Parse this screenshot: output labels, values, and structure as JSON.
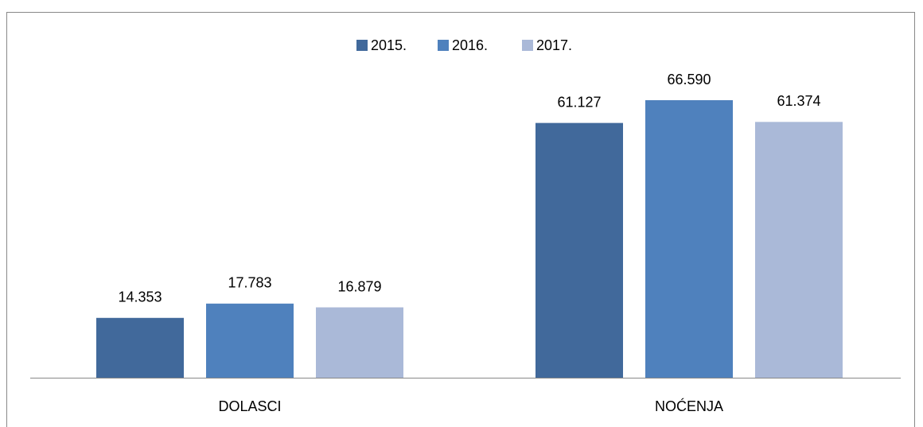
{
  "chart_data": {
    "type": "bar",
    "categories": [
      "DOLASCI",
      "NOĆENJA"
    ],
    "series": [
      {
        "name": "2015.",
        "color": "#41699b",
        "values": [
          14353,
          61127
        ],
        "value_labels": [
          "14.353",
          "61.127"
        ]
      },
      {
        "name": "2016.",
        "color": "#4f81bd",
        "values": [
          17783,
          66590
        ],
        "value_labels": [
          "17.783",
          "66.590"
        ]
      },
      {
        "name": "2017.",
        "color": "#aab9d8",
        "values": [
          16879,
          61374
        ],
        "value_labels": [
          "16.879",
          "61.374"
        ]
      }
    ],
    "legend": "top"
  }
}
